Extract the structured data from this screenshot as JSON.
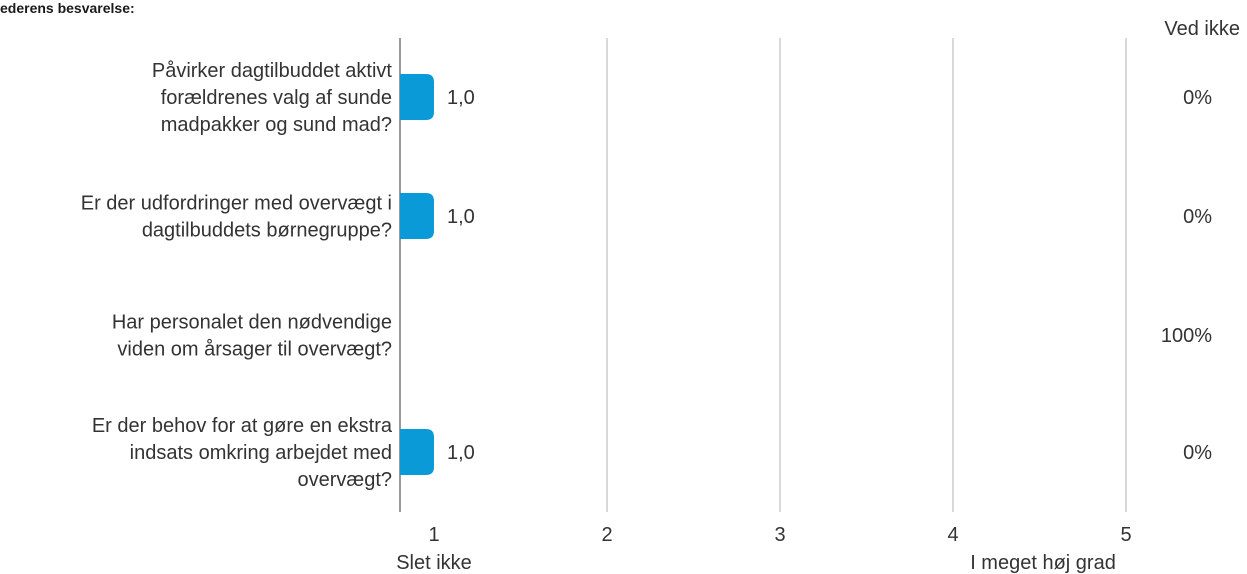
{
  "subtitle": "ederens besvarelse:",
  "ved_ikke_header": "Ved ikke",
  "colors": {
    "bar": "#0b9ad8",
    "grid": "#b3b3b3",
    "axis": "#999999",
    "text": "#333333"
  },
  "chart_data": {
    "type": "bar",
    "orientation": "horizontal",
    "categories": [
      [
        "Påvirker dagtilbuddet aktivt",
        "forældrenes valg af sunde",
        "madpakker og sund mad?"
      ],
      [
        "Er der udfordringer med overvægt i",
        "dagtilbuddets børnegruppe?"
      ],
      [
        "Har personalet den nødvendige",
        "viden om årsager til overvægt?"
      ],
      [
        "Er der behov for at gøre en ekstra",
        "indsats omkring arbejdet med",
        "overvægt?"
      ]
    ],
    "values": [
      1.0,
      1.0,
      null,
      1.0
    ],
    "value_labels": [
      "1,0",
      "1,0",
      "",
      "1,0"
    ],
    "ved_ikke": [
      "0%",
      "0%",
      "100%",
      "0%"
    ],
    "x_ticks": [
      "1",
      "2",
      "3",
      "4",
      "5"
    ],
    "xlim": [
      1,
      5
    ],
    "x_anchor_labels": {
      "min": "Slet ikke",
      "max": "I meget høj grad"
    },
    "grid": true
  }
}
